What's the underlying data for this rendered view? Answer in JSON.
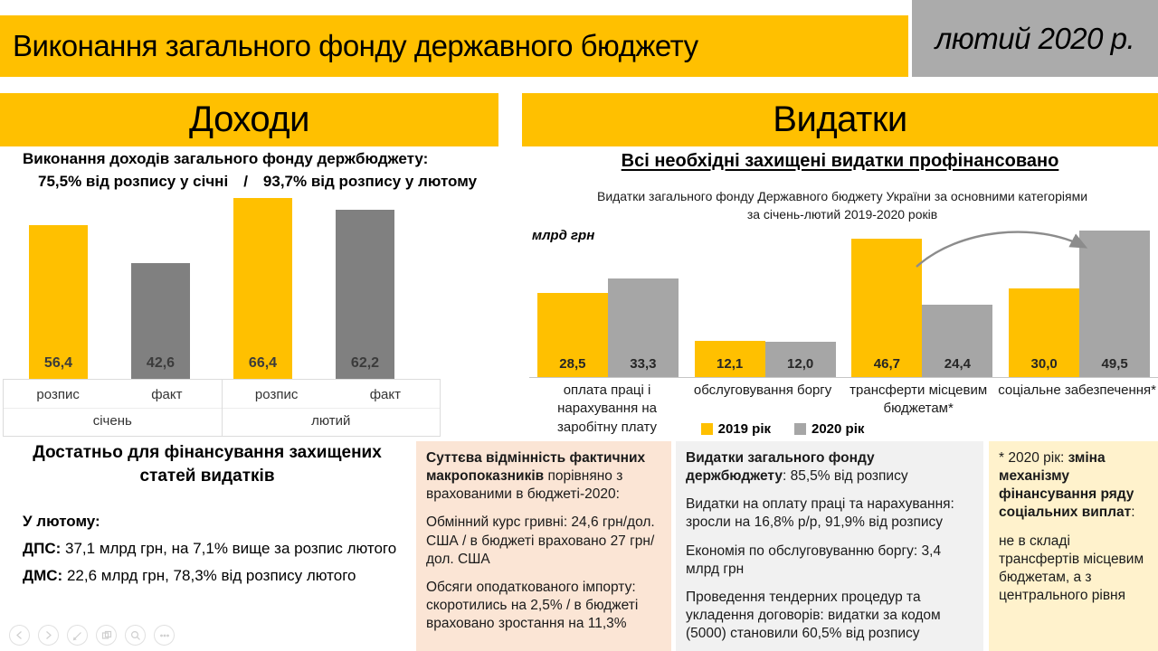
{
  "header": {
    "title": "Виконання загального фонду державного бюджету",
    "date": "лютий 2020 р."
  },
  "revenue": {
    "banner": "Доходи",
    "subtitle": "Виконання доходів загального фонду держбюджету:",
    "subtitle2_left": "75,5% від розпису у січні",
    "subtitle2_sep": "/",
    "subtitle2_right": "93,7% від розпису у лютому",
    "note_title": "Достатньо для фінансування захищених статей видатків",
    "february_label": "У лютому:",
    "lines": [
      {
        "lead": "ДПС:",
        "text": " 37,1 млрд грн, на 7,1% вище за розпис лютого"
      },
      {
        "lead": "ДМС:",
        "text": " 22,6 млрд грн, 78,3% від розпису лютого"
      }
    ]
  },
  "expenditure": {
    "banner": "Видатки",
    "heading": "Всі необхідні захищені видатки профінансовано",
    "chart_title_line1": "Видатки загального фонду Державного бюджету України за основними категоріями",
    "chart_title_line2": "за січень-лютий 2019-2020 років",
    "unit_label": "млрд грн"
  },
  "notes": {
    "macro": {
      "lead": "Суттєва відмінність фактичних макропоказників",
      "lead_rest": " порівняно з врахованими в бюджеті-2020:",
      "p2": "Обмінний курс гривні: 24,6 грн/дол. США / в бюджеті враховано 27 грн/дол. США",
      "p3": "Обсяги оподаткованого імпорту: скоротились на 2,5% / в бюджеті враховано зростання на 11,3%"
    },
    "spending": {
      "lead": "Видатки загального фонду держбюджету",
      "lead_rest": ": 85,5% від розпису",
      "p2": "Видатки на оплату праці та нарахування: зросли на 16,8% р/р, 91,9% від розпису",
      "p3": "Економія по обслуговуванню боргу: 3,4 млрд грн",
      "p4": "Проведення тендерних процедур та укладення договорів: видатки за кодом (5000) становили 60,5% від розпису"
    },
    "social": {
      "pre": "* 2020 рік: ",
      "bold": "зміна механізму фінансування ряду соціальних виплат",
      "post": ":",
      "p2": "не в складі трансфертів місцевим бюджетам, а з центрального рівня"
    }
  },
  "controls": {
    "icons": [
      "previous-slide-icon",
      "next-slide-icon",
      "pen-icon",
      "slide-sorter-icon",
      "zoom-icon",
      "more-options-icon"
    ]
  },
  "colors": {
    "accent_yellow": "#FFC000",
    "bar_gray_left": "#808080",
    "bar_gray_right": "#A6A6A6",
    "header_gray": "#ABABAB",
    "note_peach": "#FBE5D5",
    "note_gray": "#F1F1F1",
    "note_yellow": "#FFF2CC"
  },
  "chart_data": [
    {
      "type": "bar",
      "title": "Виконання доходів загального фонду держбюджету",
      "ylabel": "млрд грн",
      "grid": false,
      "legend": false,
      "groups": [
        {
          "category": "січень",
          "bars": [
            {
              "label": "розпис",
              "value": 56.4,
              "display": "56,4",
              "color": "#FFC000"
            },
            {
              "label": "факт",
              "value": 42.6,
              "display": "42,6",
              "color": "#808080"
            }
          ]
        },
        {
          "category": "лютий",
          "bars": [
            {
              "label": "розпис",
              "value": 66.4,
              "display": "66,4",
              "color": "#FFC000"
            },
            {
              "label": "факт",
              "value": 62.2,
              "display": "62,2",
              "color": "#808080"
            }
          ]
        }
      ]
    },
    {
      "type": "bar",
      "title": "Видатки загального фонду Державного бюджету України за основними категоріями за січень-лютий 2019-2020 років",
      "ylabel": "млрд грн",
      "grid": false,
      "legend_position": "bottom",
      "categories": [
        "оплата праці і нарахування на заробітну плату",
        "обслуговування боргу",
        "трансферти місцевим бюджетам*",
        "соціальне забезпечення*"
      ],
      "series": [
        {
          "name": "2019 рік",
          "color": "#FFC000",
          "values": [
            28.5,
            12.1,
            46.7,
            30.0
          ],
          "displays": [
            "28,5",
            "12,1",
            "46,7",
            "30,0"
          ]
        },
        {
          "name": "2020 рік",
          "color": "#A6A6A6",
          "values": [
            33.3,
            12.0,
            24.4,
            49.5
          ],
          "displays": [
            "33,3",
            "12,0",
            "24,4",
            "49,5"
          ]
        }
      ]
    }
  ]
}
